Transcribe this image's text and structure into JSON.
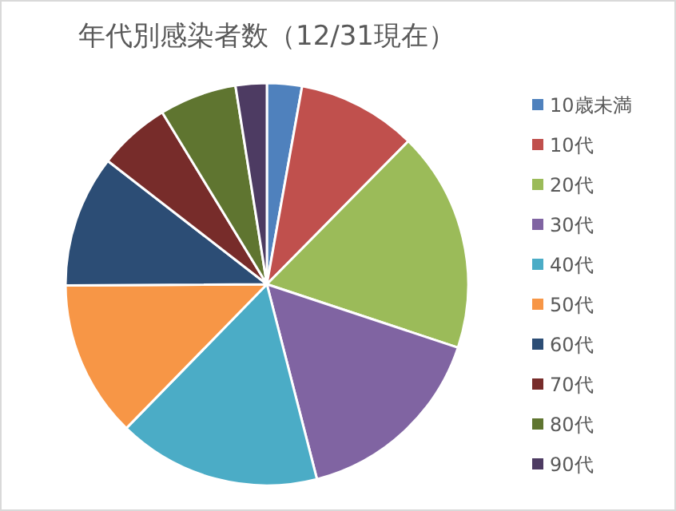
{
  "chart_data": {
    "type": "pie",
    "title": "年代別感染者数（12/31現在）",
    "categories": [
      "10歳未満",
      "10代",
      "20代",
      "30代",
      "40代",
      "50代",
      "60代",
      "70代",
      "80代",
      "90代"
    ],
    "values": [
      2.8,
      9.6,
      17.7,
      15.9,
      16.3,
      12.6,
      10.6,
      5.8,
      6.2,
      2.5
    ],
    "colors": [
      "#4f81bd",
      "#c0504d",
      "#9bbb59",
      "#8064a2",
      "#4bacc6",
      "#f79646",
      "#2c4d75",
      "#772c2a",
      "#5f7530",
      "#4d3b62"
    ],
    "legend": "right"
  }
}
